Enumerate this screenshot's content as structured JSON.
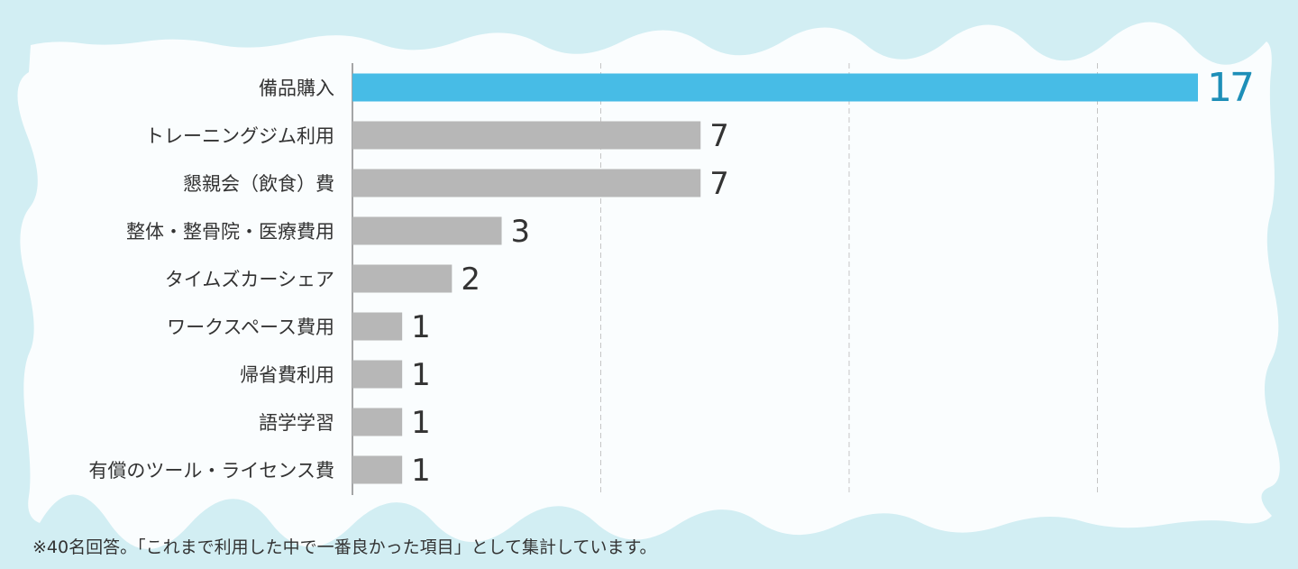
{
  "chart_data": {
    "type": "bar",
    "orientation": "horizontal",
    "categories": [
      "備品購入",
      "トレーニングジム利用",
      "懇親会（飲食）費",
      "整体・整骨院・医療費用",
      "タイムズカーシェア",
      "ワークスペース費用",
      "帰省費利用",
      "語学学習",
      "有償のツール・ライセンス費"
    ],
    "values": [
      17,
      7,
      7,
      3,
      2,
      1,
      1,
      1,
      1
    ],
    "xlim": [
      0,
      17
    ],
    "grid": "vertical-dashed",
    "highlight_index": 0,
    "colors": {
      "highlight_bar": "#47bce6",
      "bar": "#b7b7b7",
      "highlight_label": "#1e8fb8",
      "label": "#333333",
      "panel": "#fafdfe",
      "background": "#d2eef3",
      "gridline": "#c5c5c5"
    }
  },
  "footnote": "※40名回答。「これまで利用した中で一番良かった項目」として集計しています。"
}
